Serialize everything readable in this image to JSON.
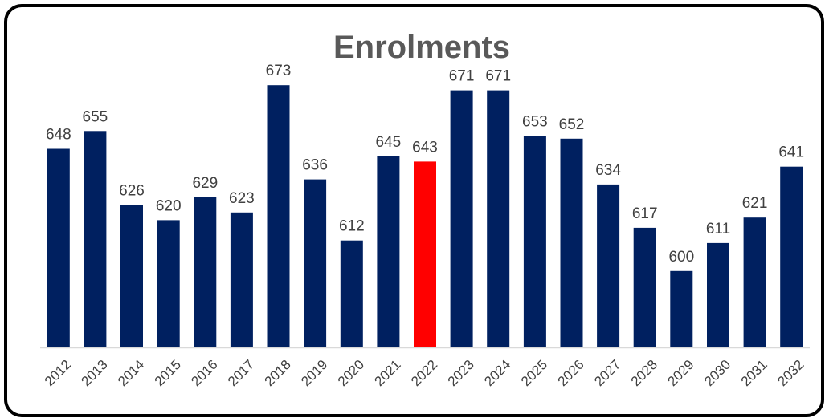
{
  "chart_data": {
    "type": "bar",
    "title": "Enrolments",
    "xlabel": "",
    "ylabel": "",
    "categories": [
      "2012",
      "2013",
      "2014",
      "2015",
      "2016",
      "2017",
      "2018",
      "2019",
      "2020",
      "2021",
      "2022",
      "2023",
      "2024",
      "2025",
      "2026",
      "2027",
      "2028",
      "2029",
      "2030",
      "2031",
      "2032"
    ],
    "series": [
      {
        "values": [
          648,
          655,
          626,
          620,
          629,
          623,
          673,
          636,
          612,
          645,
          643,
          671,
          671,
          653,
          652,
          634,
          617,
          600,
          611,
          621,
          641
        ]
      }
    ],
    "ylim": [
      570,
      680
    ],
    "grid": false,
    "legend": "none",
    "colors": {
      "bar": "#002060",
      "highlight": "#ff0000",
      "axis": "#d9d9d9",
      "text": "#404040",
      "title": "#595959"
    },
    "highlight_category": "2022"
  }
}
